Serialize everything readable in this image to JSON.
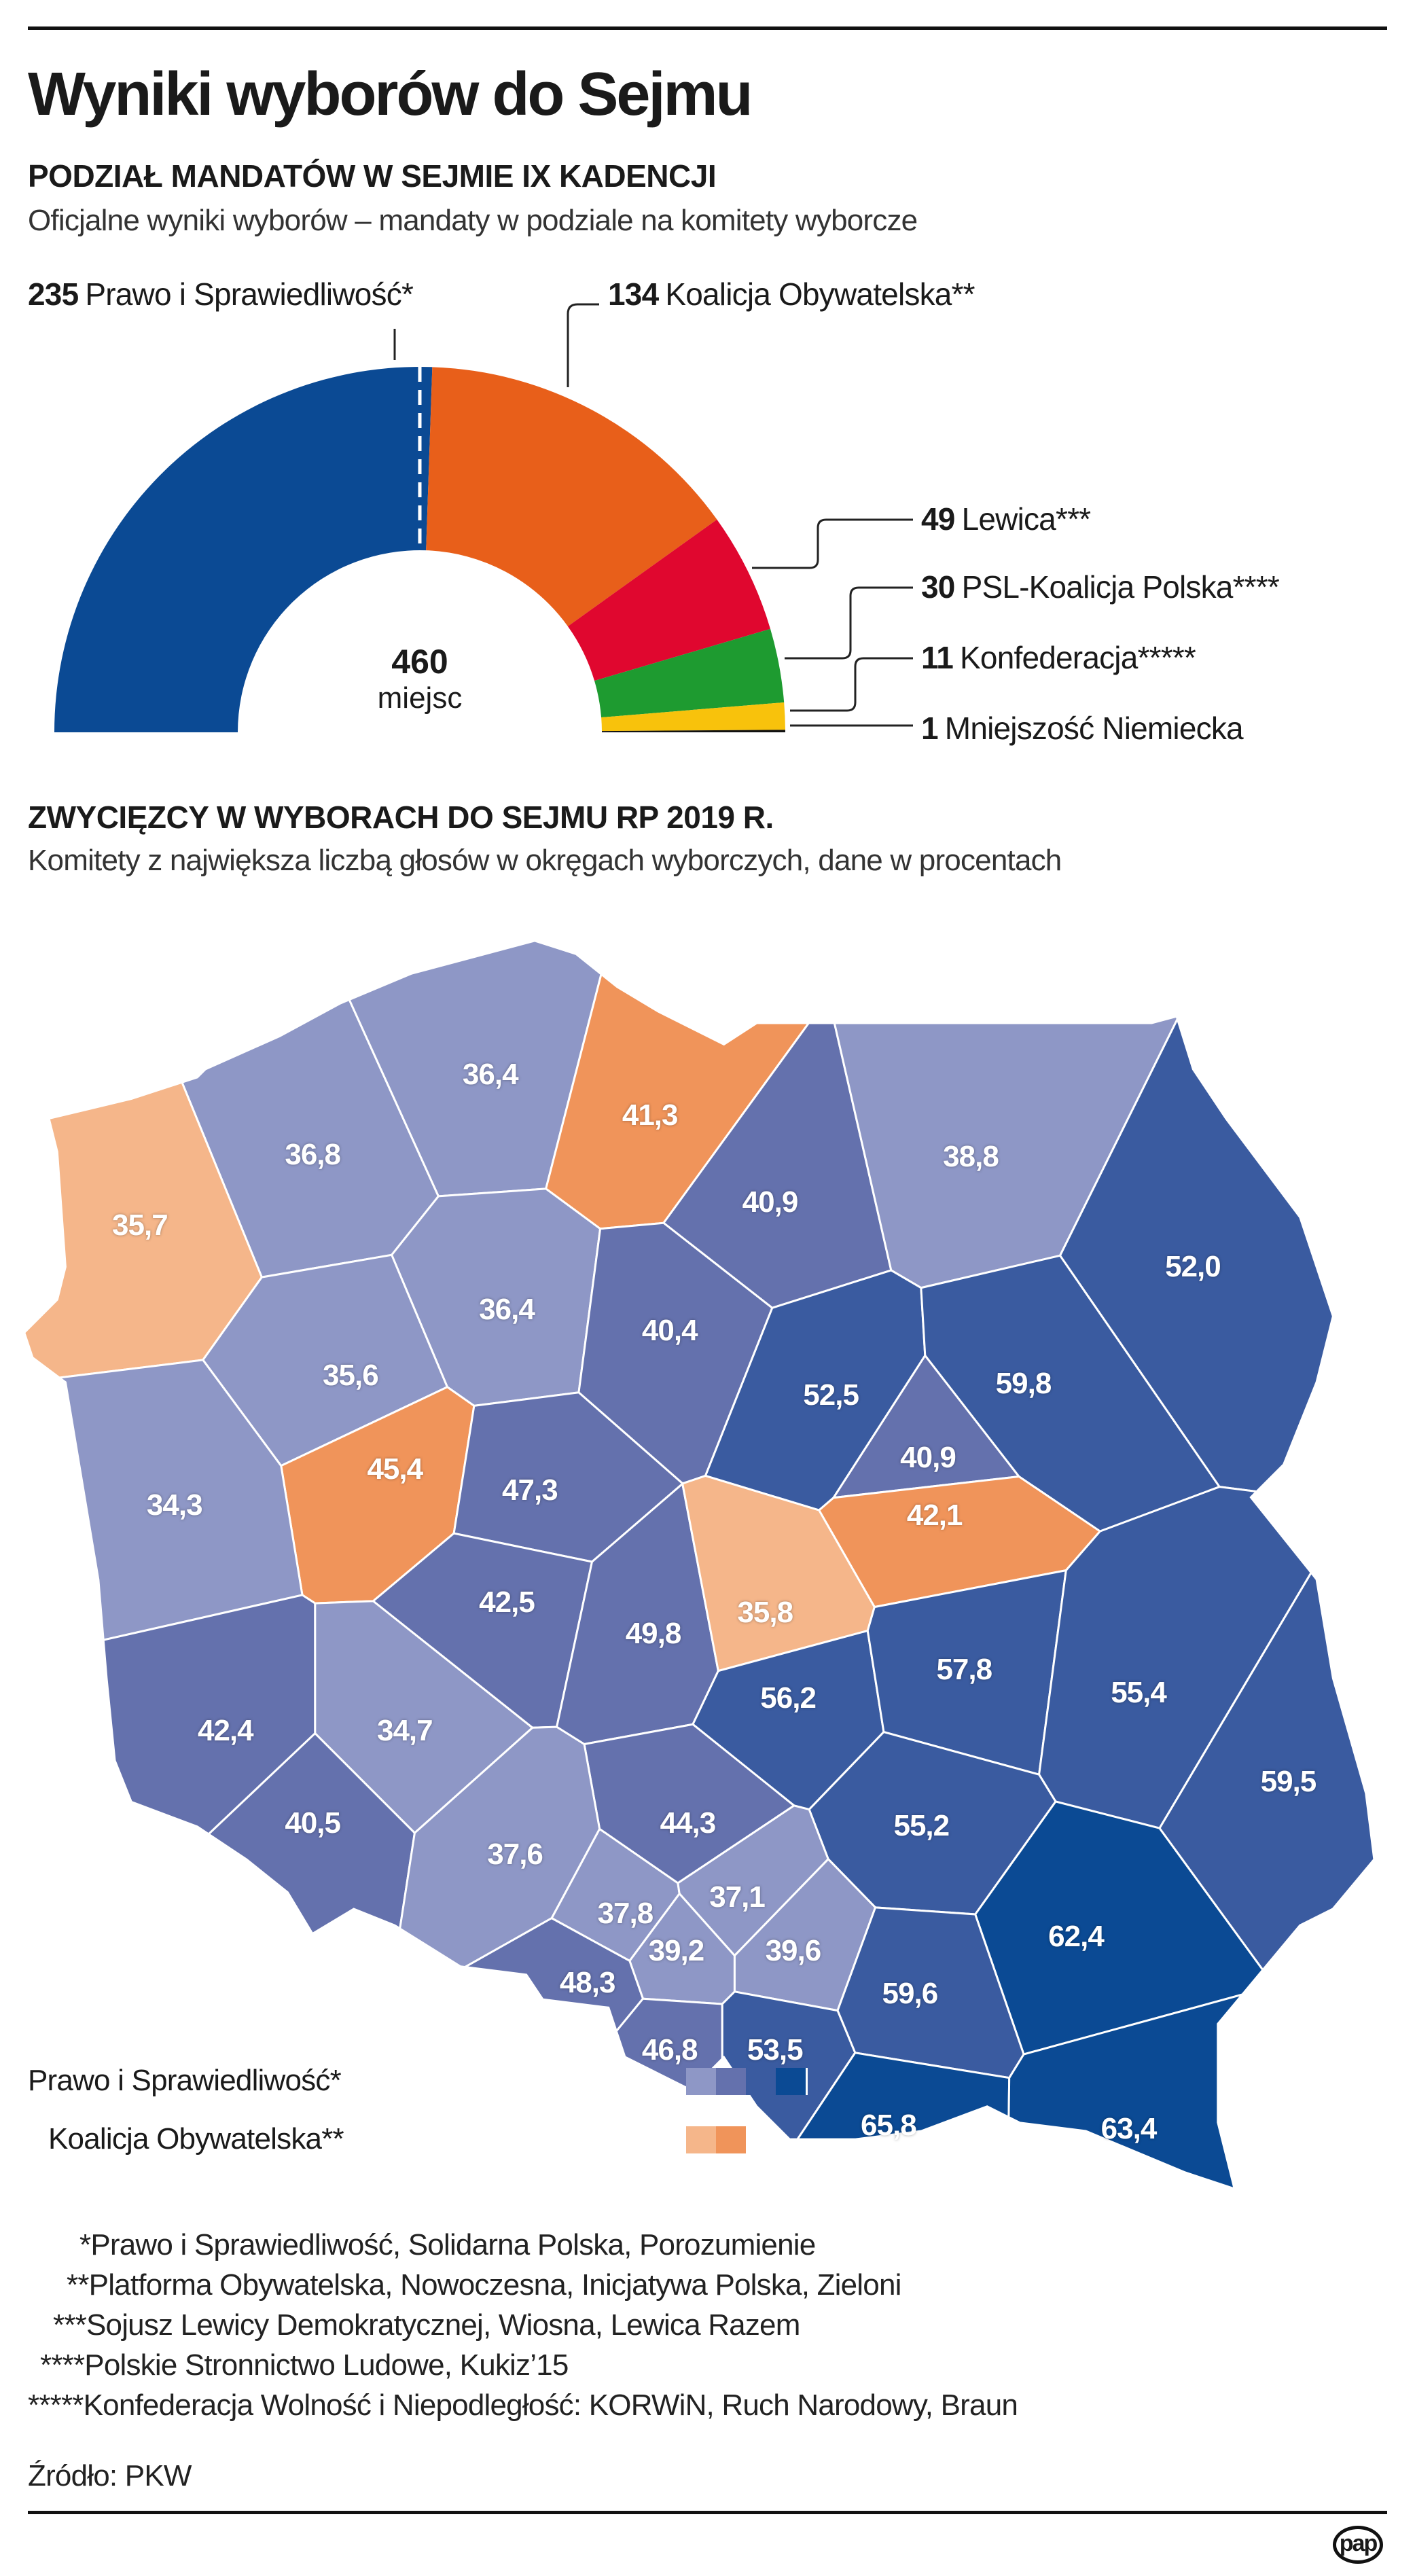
{
  "header": {
    "title": "Wyniki wyborów do Sejmu",
    "section1_title": "PODZIAŁ MANDATÓW W SEJMIE IX KADENCJI",
    "section1_subtitle": "Oficjalne wyniki wyborów – mandaty w podziale na komitety wyborcze",
    "section2_title": "ZWYCIĘZCY W WYBORACH DO SEJMU RP 2019 R.",
    "section2_subtitle": "Komitety z największa liczbą głosów w okręgach wyborczych, dane w procentach"
  },
  "chart_data": [
    {
      "type": "pie",
      "variant": "half-donut",
      "total_label": "460",
      "total_unit": "miejsc",
      "slices": [
        {
          "seats": "235",
          "name": "Prawo i Sprawiedliwość*",
          "color": "#0b4a94"
        },
        {
          "seats": "134",
          "name": "Koalicja Obywatelska**",
          "color": "#e85f1a"
        },
        {
          "seats": "49",
          "name": "Lewica***",
          "color": "#e0072f"
        },
        {
          "seats": "30",
          "name": "PSL-Koalicja Polska****",
          "color": "#1e9b30"
        },
        {
          "seats": "11",
          "name": "Konfederacja*****",
          "color": "#f8c20c"
        },
        {
          "seats": "1",
          "name": "Mniejszość Niemiecka",
          "color": "#111111"
        }
      ]
    },
    {
      "type": "choropleth",
      "unit": "%",
      "districts": [
        {
          "value": "36,8",
          "party": "PiS"
        },
        {
          "value": "35,7",
          "party": "KO"
        },
        {
          "value": "36,4",
          "party": "PiS"
        },
        {
          "value": "41,3",
          "party": "KO"
        },
        {
          "value": "40,9",
          "party": "PiS"
        },
        {
          "value": "38,8",
          "party": "PiS"
        },
        {
          "value": "52,0",
          "party": "PiS"
        },
        {
          "value": "36,4",
          "party": "PiS"
        },
        {
          "value": "40,4",
          "party": "PiS"
        },
        {
          "value": "52,5",
          "party": "PiS"
        },
        {
          "value": "59,8",
          "party": "PiS"
        },
        {
          "value": "35,6",
          "party": "PiS"
        },
        {
          "value": "45,4",
          "party": "KO"
        },
        {
          "value": "34,3",
          "party": "PiS"
        },
        {
          "value": "47,3",
          "party": "PiS"
        },
        {
          "value": "40,9",
          "party": "PiS"
        },
        {
          "value": "42,1",
          "party": "KO"
        },
        {
          "value": "42,5",
          "party": "PiS"
        },
        {
          "value": "49,8",
          "party": "PiS"
        },
        {
          "value": "35,8",
          "party": "KO"
        },
        {
          "value": "56,2",
          "party": "PiS"
        },
        {
          "value": "57,8",
          "party": "PiS"
        },
        {
          "value": "55,4",
          "party": "PiS"
        },
        {
          "value": "42,4",
          "party": "PiS"
        },
        {
          "value": "34,7",
          "party": "PiS"
        },
        {
          "value": "59,5",
          "party": "PiS"
        },
        {
          "value": "44,3",
          "party": "PiS"
        },
        {
          "value": "55,2",
          "party": "PiS"
        },
        {
          "value": "40,5",
          "party": "PiS"
        },
        {
          "value": "37,6",
          "party": "PiS"
        },
        {
          "value": "37,8",
          "party": "PiS"
        },
        {
          "value": "37,1",
          "party": "PiS"
        },
        {
          "value": "39,2",
          "party": "PiS"
        },
        {
          "value": "39,6",
          "party": "PiS"
        },
        {
          "value": "62,4",
          "party": "PiS"
        },
        {
          "value": "48,3",
          "party": "PiS"
        },
        {
          "value": "59,6",
          "party": "PiS"
        },
        {
          "value": "46,8",
          "party": "PiS"
        },
        {
          "value": "53,5",
          "party": "PiS"
        },
        {
          "value": "65,8",
          "party": "PiS"
        },
        {
          "value": "63,4",
          "party": "PiS"
        }
      ],
      "scales": {
        "PiS": [
          "#8e97c6",
          "#6471ad",
          "#3a5ba0",
          "#0b4a94"
        ],
        "KO": [
          "#f5b68a",
          "#f0945a"
        ]
      },
      "legend": [
        {
          "label": "Prawo i Sprawiedliwość*",
          "party": "PiS"
        },
        {
          "label": "Koalicja Obywatelska**",
          "party": "KO"
        }
      ]
    }
  ],
  "footnotes": [
    "*Prawo i Sprawiedliwość, Solidarna Polska, Porozumienie",
    "**Platforma Obywatelska, Nowoczesna, Inicjatywa Polska, Zieloni",
    "***Sojusz Lewicy Demokratycznej, Wiosna, Lewica Razem",
    "****Polskie Stronnictwo Ludowe, Kukiz’15",
    "*****Konfederacja Wolność i Niepodległość: KORWiN, Ruch Narodowy, Braun"
  ],
  "source": "Źródło: PKW",
  "logo_text": "pap"
}
